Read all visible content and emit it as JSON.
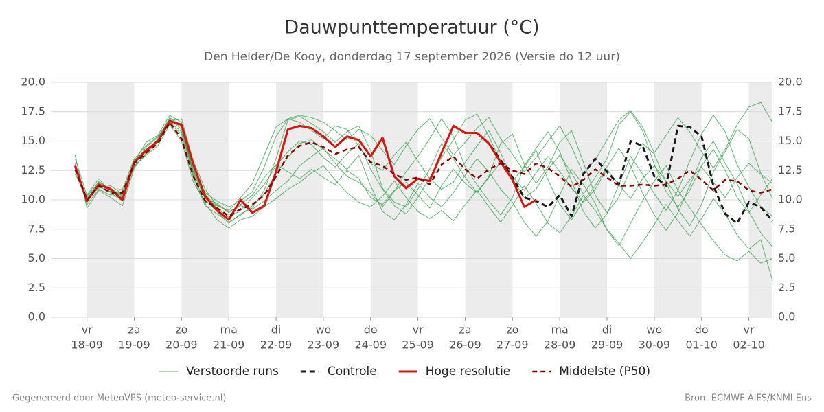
{
  "chart_data": {
    "type": "line",
    "title": "Dauwpunttemperatuur (°C)",
    "subtitle": "Den Helder/De Kooy, donderdag 17 september 2026 (Versie do 12 uur)",
    "footer_left": "Gegenereerd door MeteoVPS (meteo-service.nl)",
    "footer_right": "Bron: ECMWF AIFS/KNMI Ens",
    "xlim": [
      0.25,
      15.5
    ],
    "xticks": [
      {
        "value": 1,
        "label": "vr"
      },
      {
        "value": 2,
        "label": "za"
      },
      {
        "value": 3,
        "label": "zo"
      },
      {
        "value": 4,
        "label": "ma"
      },
      {
        "value": 5,
        "label": "di"
      },
      {
        "value": 6,
        "label": "wo"
      },
      {
        "value": 7,
        "label": "do"
      },
      {
        "value": 8,
        "label": "vr"
      },
      {
        "value": 9,
        "label": "za"
      },
      {
        "value": 10,
        "label": "zo"
      },
      {
        "value": 11,
        "label": "ma"
      },
      {
        "value": 12,
        "label": "di"
      },
      {
        "value": 13,
        "label": "wo"
      },
      {
        "value": 14,
        "label": "do"
      },
      {
        "value": 15,
        "label": "vr"
      }
    ],
    "xtick_dates": [
      "18-09",
      "19-09",
      "20-09",
      "21-09",
      "22-09",
      "23-09",
      "24-09",
      "25-09",
      "26-09",
      "27-09",
      "28-09",
      "29-09",
      "30-09",
      "01-10",
      "02-10"
    ],
    "ylim": [
      0,
      20
    ],
    "yticks": [
      {
        "value": 0,
        "label": "0.0"
      },
      {
        "value": 2.5,
        "label": "2.5"
      },
      {
        "value": 5,
        "label": "5.0"
      },
      {
        "value": 7.5,
        "label": "7.5"
      },
      {
        "value": 10,
        "label": "10.0"
      },
      {
        "value": 12.5,
        "label": "12.5"
      },
      {
        "value": 15,
        "label": "15.0"
      },
      {
        "value": 17.5,
        "label": "17.5"
      },
      {
        "value": 20,
        "label": "20.0"
      }
    ],
    "grid": true,
    "x": [
      0.75,
      1.0,
      1.25,
      1.5,
      1.75,
      2.0,
      2.25,
      2.5,
      2.75,
      3.0,
      3.25,
      3.5,
      3.75,
      4.0,
      4.25,
      4.5,
      4.75,
      5.0,
      5.25,
      5.5,
      5.75,
      6.0,
      6.25,
      6.5,
      6.75,
      7.0,
      7.25,
      7.5,
      7.75,
      8.0,
      8.25,
      8.5,
      8.75,
      9.0,
      9.25,
      9.5,
      9.75,
      10.0,
      10.25,
      10.5,
      10.75,
      11.0,
      11.25,
      11.5,
      11.75,
      12.0,
      12.25,
      12.5,
      12.75,
      13.0,
      13.25,
      13.5,
      13.75,
      14.0,
      14.25,
      14.5,
      14.75,
      15.0,
      15.25,
      15.5
    ],
    "ensemble": {
      "name": "Verstoorde runs",
      "color": "#2e9e44",
      "members": [
        [
          12.2,
          10.3,
          11.5,
          10.9,
          10.2,
          13.0,
          14.5,
          15.3,
          16.9,
          16.0,
          12.6,
          10.0,
          9.0,
          8.0,
          8.8,
          9.3,
          10.8,
          13.5,
          16.8,
          17.1,
          16.5,
          15.8,
          14.9,
          15.8,
          16.3,
          14.2,
          11.0,
          9.8,
          9.4,
          10.9,
          12.6,
          14.8,
          13.5,
          11.9,
          10.6,
          12.0,
          14.8,
          15.6,
          13.0,
          11.4,
          12.8,
          14.9,
          15.9,
          13.2,
          10.4,
          8.9,
          10.2,
          12.7,
          14.8,
          13.9,
          11.5,
          9.2,
          7.8,
          9.6,
          12.4,
          14.1,
          16.0,
          15.2,
          12.3,
          10.1
        ],
        [
          13.1,
          9.6,
          10.9,
          10.4,
          10.7,
          12.9,
          13.8,
          14.6,
          16.4,
          15.0,
          11.5,
          9.8,
          9.6,
          9.0,
          9.5,
          9.2,
          9.9,
          10.8,
          11.6,
          12.9,
          13.7,
          14.4,
          13.1,
          12.0,
          11.5,
          10.6,
          9.4,
          10.7,
          12.4,
          13.7,
          15.2,
          16.9,
          15.4,
          12.8,
          11.3,
          9.9,
          8.7,
          10.2,
          12.9,
          14.4,
          15.8,
          14.1,
          11.6,
          9.0,
          7.6,
          8.8,
          11.3,
          13.7,
          12.2,
          10.5,
          9.1,
          10.8,
          13.3,
          15.6,
          17.2,
          15.8,
          13.0,
          11.1,
          9.4,
          8.6
        ],
        [
          12.8,
          10.1,
          11.0,
          11.2,
          10.5,
          13.4,
          14.3,
          15.1,
          16.8,
          16.2,
          12.4,
          10.6,
          9.9,
          9.4,
          9.9,
          10.7,
          12.8,
          15.4,
          16.9,
          16.6,
          15.9,
          15.2,
          16.3,
          16.0,
          14.6,
          13.1,
          12.5,
          13.8,
          14.9,
          13.3,
          11.8,
          10.9,
          11.5,
          13.2,
          14.6,
          15.9,
          14.0,
          11.8,
          10.2,
          10.9,
          12.6,
          13.8,
          12.3,
          10.5,
          11.9,
          13.5,
          16.4,
          17.5,
          15.9,
          13.0,
          10.7,
          9.4,
          10.8,
          12.9,
          14.3,
          12.5,
          10.2,
          8.9,
          10.4,
          11.8
        ],
        [
          13.5,
          10.4,
          11.8,
          10.6,
          9.9,
          13.2,
          14.9,
          15.5,
          17.2,
          16.6,
          12.9,
          10.5,
          9.3,
          8.5,
          9.1,
          10.2,
          11.3,
          12.9,
          14.1,
          15.0,
          14.7,
          13.6,
          12.8,
          13.9,
          14.8,
          12.6,
          10.9,
          9.5,
          8.8,
          10.2,
          11.9,
          13.6,
          15.1,
          16.8,
          17.3,
          15.4,
          13.3,
          11.6,
          12.8,
          14.2,
          11.7,
          9.6,
          8.3,
          9.9,
          11.2,
          12.8,
          14.4,
          12.9,
          10.6,
          8.7,
          7.4,
          8.9,
          11.2,
          13.6,
          15.0,
          13.1,
          11.4,
          9.0,
          7.2,
          6.0
        ],
        [
          12.4,
          9.8,
          11.3,
          11.0,
          10.3,
          12.8,
          13.9,
          15.0,
          16.5,
          15.6,
          11.9,
          9.5,
          8.8,
          8.1,
          8.7,
          9.5,
          10.5,
          12.3,
          13.6,
          14.8,
          15.1,
          14.3,
          13.5,
          12.6,
          13.8,
          11.2,
          9.0,
          8.3,
          9.6,
          11.4,
          10.2,
          9.4,
          10.6,
          12.1,
          13.5,
          12.4,
          10.9,
          9.8,
          8.1,
          6.9,
          8.2,
          10.4,
          12.6,
          11.3,
          9.7,
          7.4,
          6.1,
          8.0,
          9.9,
          11.6,
          12.9,
          10.8,
          9.3,
          7.9,
          6.5,
          5.3,
          4.8,
          5.6,
          4.6,
          5.0
        ],
        [
          12.9,
          10.0,
          11.6,
          10.8,
          10.9,
          13.5,
          14.6,
          15.4,
          16.7,
          16.9,
          13.3,
          10.9,
          9.5,
          9.1,
          10.2,
          11.4,
          13.8,
          16.2,
          16.9,
          17.2,
          17.0,
          16.6,
          15.9,
          15.1,
          16.0,
          15.5,
          14.2,
          13.0,
          14.6,
          16.0,
          16.9,
          15.3,
          13.8,
          14.9,
          16.1,
          17.0,
          15.2,
          13.9,
          12.4,
          13.6,
          15.0,
          16.3,
          14.5,
          12.2,
          13.4,
          15.1,
          16.8,
          17.6,
          16.2,
          14.0,
          15.5,
          17.0,
          15.8,
          14.1,
          12.7,
          14.3,
          16.4,
          17.9,
          18.3,
          16.6
        ],
        [
          12.6,
          10.2,
          11.1,
          10.7,
          10.4,
          13.1,
          14.2,
          14.9,
          16.6,
          15.8,
          12.3,
          10.1,
          9.7,
          8.9,
          9.6,
          10.4,
          11.9,
          13.0,
          12.4,
          11.8,
          12.6,
          11.9,
          11.3,
          12.5,
          11.8,
          10.2,
          9.6,
          10.8,
          11.5,
          10.4,
          9.3,
          11.2,
          12.6,
          11.4,
          10.6,
          11.9,
          13.2,
          12.0,
          10.8,
          12.3,
          13.7,
          12.4,
          11.0,
          9.8,
          10.9,
          12.6,
          11.3,
          10.1,
          11.8,
          12.9,
          11.6,
          10.3,
          11.7,
          12.8,
          11.5,
          10.2,
          11.9,
          13.1,
          12.2,
          11.4
        ],
        [
          13.8,
          9.3,
          10.8,
          10.2,
          9.5,
          12.7,
          14.0,
          15.2,
          17.0,
          16.3,
          12.1,
          9.7,
          8.3,
          7.6,
          8.3,
          8.6,
          9.4,
          10.1,
          10.9,
          11.5,
          12.3,
          12.9,
          11.7,
          10.6,
          9.8,
          9.4,
          10.3,
          11.6,
          10.2,
          9.0,
          8.4,
          9.1,
          8.2,
          9.6,
          10.8,
          9.4,
          8.1,
          9.5,
          11.2,
          9.7,
          8.0,
          7.2,
          8.6,
          10.4,
          9.1,
          7.5,
          6.3,
          5.0,
          6.4,
          7.9,
          9.6,
          8.2,
          6.9,
          8.4,
          10.1,
          8.8,
          7.0,
          5.8,
          6.6,
          3.1
        ]
      ]
    },
    "series": [
      {
        "name": "Controle",
        "color": "#1a1a1a",
        "dash": "8 5",
        "width": 3,
        "values": [
          12.9,
          9.9,
          11.3,
          10.9,
          10.0,
          13.2,
          14.2,
          15.0,
          16.7,
          16.4,
          13.0,
          10.3,
          9.1,
          8.3,
          10.0,
          8.9,
          9.5,
          12.4,
          16.0,
          16.3,
          16.1,
          15.4,
          14.5,
          15.4,
          15.1,
          13.7,
          15.3,
          12.0,
          11.0,
          11.8,
          11.6,
          14.0,
          16.3,
          15.7,
          15.7,
          14.8,
          13.4,
          11.9,
          10.2,
          9.9,
          9.4,
          10.4,
          8.6,
          12.2,
          13.5,
          12.4,
          11.3,
          15.0,
          14.6,
          12.0,
          11.2,
          16.3,
          16.2,
          15.4,
          11.2,
          8.8,
          8.0,
          9.8,
          9.4,
          8.2
        ]
      },
      {
        "name": "Hoge resolutie",
        "color": "#e0130f",
        "dash": null,
        "width": 3,
        "values": [
          12.9,
          9.9,
          11.3,
          10.9,
          10.0,
          13.2,
          14.2,
          15.0,
          16.7,
          16.4,
          13.0,
          10.3,
          9.1,
          8.3,
          10.0,
          8.9,
          9.5,
          12.4,
          16.0,
          16.3,
          16.1,
          15.4,
          14.5,
          15.4,
          15.1,
          13.7,
          15.3,
          12.0,
          11.0,
          11.8,
          11.6,
          14.0,
          16.3,
          15.7,
          15.7,
          14.8,
          13.2,
          11.7,
          9.4,
          10.0,
          null,
          null,
          null,
          null,
          null,
          null,
          null,
          null,
          null,
          null,
          null,
          null,
          null,
          null,
          null,
          null,
          null,
          null,
          null,
          null
        ]
      },
      {
        "name": "Middelste (P50)",
        "color": "#8b0000",
        "dash": "7 5",
        "width": 2.5,
        "values": [
          12.6,
          10.0,
          11.2,
          10.6,
          10.6,
          13.1,
          14.0,
          14.8,
          16.6,
          15.2,
          12.0,
          9.9,
          9.3,
          8.6,
          9.2,
          9.6,
          10.4,
          12.0,
          13.8,
          14.6,
          14.9,
          14.5,
          13.9,
          14.3,
          14.5,
          13.2,
          12.9,
          12.2,
          11.7,
          11.9,
          11.3,
          13.0,
          13.7,
          12.6,
          11.8,
          12.6,
          13.1,
          12.5,
          12.2,
          13.1,
          12.7,
          12.0,
          11.1,
          11.7,
          12.6,
          11.9,
          11.2,
          11.2,
          11.3,
          11.2,
          11.3,
          11.8,
          12.5,
          11.7,
          10.8,
          11.7,
          11.6,
          10.8,
          10.6,
          10.9
        ]
      }
    ]
  }
}
